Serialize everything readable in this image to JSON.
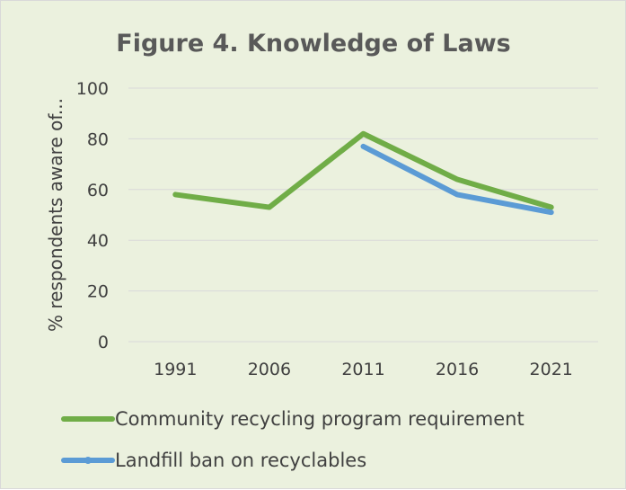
{
  "chart_data": {
    "type": "line",
    "title": "Figure 4. Knowledge of Laws",
    "xlabel": "",
    "ylabel": "% respondents aware of...",
    "categories": [
      "1991",
      "2006",
      "2011",
      "2016",
      "2021"
    ],
    "ylim": [
      0,
      100
    ],
    "yticks": [
      0,
      20,
      40,
      60,
      80,
      100
    ],
    "grid": true,
    "legend_position": "bottom",
    "series": [
      {
        "name": "Community recycling program requirement",
        "color": "#70AD47",
        "values": [
          58,
          53,
          82,
          64,
          53
        ]
      },
      {
        "name": "Landfill ban on recyclables",
        "color": "#5B9BD5",
        "values": [
          null,
          null,
          77,
          58,
          51
        ]
      }
    ]
  }
}
